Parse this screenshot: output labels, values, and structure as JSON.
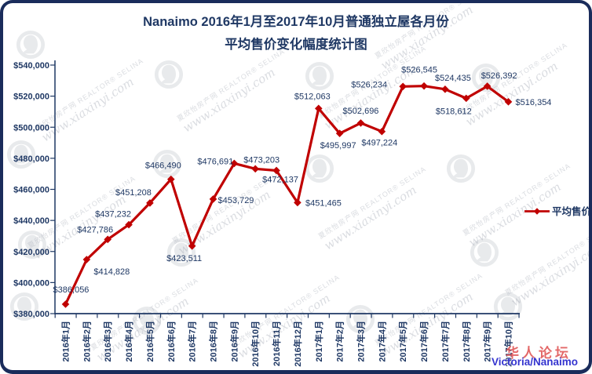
{
  "title": {
    "line1": "Nanaimo 2016年1月至2017年10月普通独立屋各月份",
    "line2": "平均售价变化幅度统计图"
  },
  "legend": {
    "label": "平均售价"
  },
  "footer": {
    "forum": "华人论坛",
    "region": "Victoria/Nanaimo"
  },
  "watermark": {
    "site_cn": "夏欣怡房产网",
    "agent": "REALTOR® SELINA",
    "url": "www.xiaxinyi.com"
  },
  "colors": {
    "line": "#C00000",
    "text": "#1F3864",
    "axis": "#1F3864",
    "border": "#1A2C5B",
    "watermark_gray": "#A8AEB8",
    "forum_red": "#E05454",
    "region_blue": "#3434CF"
  },
  "chart_data": {
    "type": "line",
    "title": "Nanaimo 2016年1月至2017年10月普通独立屋各月份平均售价变化幅度统计图",
    "xlabel": "",
    "ylabel": "",
    "categories": [
      "2016年1月",
      "2016年2月",
      "2016年3月",
      "2016年4月",
      "2016年5月",
      "2016年6月",
      "2016年7月",
      "2016年8月",
      "2016年9月",
      "2016年10月",
      "2016年11月",
      "2016年12月",
      "2017年1月",
      "2017年2月",
      "2017年3月",
      "2017年4月",
      "2017年5月",
      "2017年6月",
      "2017年7月",
      "2017年8月",
      "2017年9月",
      "2017年10月"
    ],
    "series": [
      {
        "name": "平均售价",
        "values": [
          386056,
          414828,
          427786,
          437232,
          451208,
          466490,
          423511,
          453729,
          476691,
          473203,
          472137,
          451465,
          512063,
          495997,
          502696,
          497224,
          526234,
          526545,
          524435,
          518612,
          526392,
          516354
        ]
      }
    ],
    "point_labels": [
      "$386,056",
      "$414,828",
      "$427,786",
      "$437,232",
      "$451,208",
      "$466,490",
      "$423,511",
      "$453,729",
      "$476,691",
      "$473,203",
      "$472,137",
      "$451,465",
      "$512,063",
      "$495,997",
      "$502,696",
      "$497,224",
      "$526,234",
      "$526,545",
      "$524,435",
      "$518,612",
      "$526,392",
      "$516,354"
    ],
    "ylim": [
      380000,
      540000
    ],
    "ytick_step": 20000,
    "ytick_labels": [
      "$380,000",
      "$400,000",
      "$420,000",
      "$440,000",
      "$460,000",
      "$480,000",
      "$500,000",
      "$520,000",
      "$540,000"
    ],
    "grid": false,
    "legend_position": "middle-right",
    "marker": "diamond"
  }
}
